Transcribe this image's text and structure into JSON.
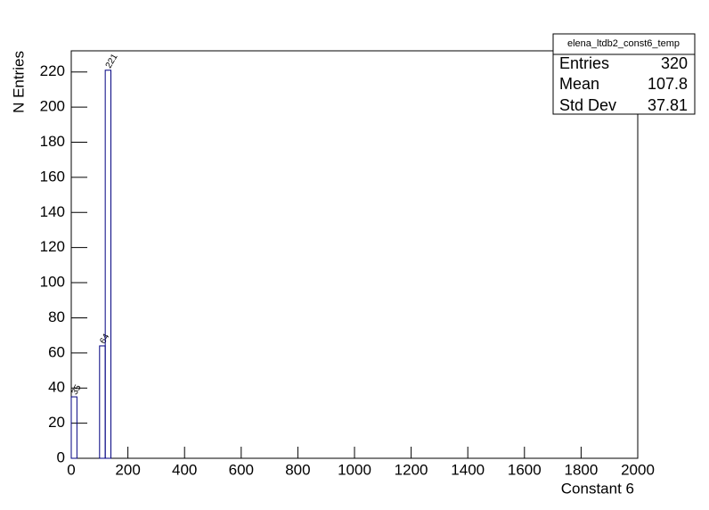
{
  "chart_data": {
    "type": "histogram",
    "x_label": "Constant 6",
    "y_label": "N Entries",
    "bins": [
      0,
      20,
      40,
      60,
      80,
      100,
      120,
      140
    ],
    "values": [
      35,
      0,
      0,
      0,
      0,
      64,
      221
    ],
    "color": "#000080",
    "xlim": [
      0,
      2000
    ],
    "xticks": [
      0,
      200,
      400,
      600,
      800,
      1000,
      1200,
      1400,
      1600,
      1800,
      2000
    ],
    "ylim": [
      0,
      232.05
    ],
    "yticks": [
      0,
      20,
      40,
      60,
      80,
      100,
      120,
      140,
      160,
      180,
      200,
      220
    ],
    "stats": {
      "title": "elena_ltdb2_const6_temp",
      "rows": [
        {
          "label": "Entries",
          "value": 320
        },
        {
          "label": "Mean",
          "value": 107.8
        },
        {
          "label": "Std Dev",
          "value": 37.81
        }
      ]
    }
  }
}
